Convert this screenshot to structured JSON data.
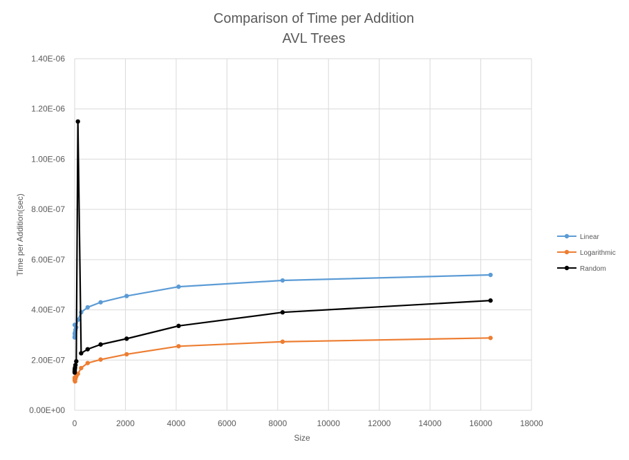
{
  "chart_data": {
    "type": "scatter",
    "title_lines": [
      "Comparison of Time per Addition",
      "AVL Trees"
    ],
    "xlabel": "Size",
    "ylabel": "Time per Addition(sec)",
    "xlim": [
      0,
      18000
    ],
    "ylim": [
      0,
      1.4e-06
    ],
    "x_ticks": [
      0,
      2000,
      4000,
      6000,
      8000,
      10000,
      12000,
      14000,
      16000,
      18000
    ],
    "x_tick_labels": [
      "0",
      "2000",
      "4000",
      "6000",
      "8000",
      "10000",
      "12000",
      "14000",
      "16000",
      "18000"
    ],
    "y_ticks": [
      0,
      2e-07,
      4e-07,
      6e-07,
      8e-07,
      1e-06,
      1.2e-06,
      1.4e-06
    ],
    "y_tick_labels": [
      "0.00E+00",
      "2.00E-07",
      "4.00E-07",
      "6.00E-07",
      "8.00E-07",
      "1.00E-06",
      "1.20E-06",
      "1.40E-06"
    ],
    "grid": true,
    "legend_position": "right",
    "series": [
      {
        "name": "Linear",
        "color": "#5b9bd5",
        "x": [
          1,
          2,
          4,
          8,
          16,
          32,
          64,
          128,
          256,
          512,
          1024,
          2048,
          4096,
          8192,
          16384
        ],
        "y": [
          2.9e-07,
          3.4e-07,
          3.05e-07,
          2.95e-07,
          3.1e-07,
          3.2e-07,
          3.3e-07,
          3.6e-07,
          3.9e-07,
          4.1e-07,
          4.3e-07,
          4.55e-07,
          4.92e-07,
          5.17e-07,
          5.39e-07
        ]
      },
      {
        "name": "Logarithmic",
        "color": "#ed7d31",
        "x": [
          1,
          2,
          4,
          8,
          16,
          32,
          64,
          128,
          256,
          512,
          1024,
          2048,
          4096,
          8192,
          16384
        ],
        "y": [
          1.2e-07,
          1.3e-07,
          1.25e-07,
          1.2e-07,
          1.15e-07,
          1.25e-07,
          1.35e-07,
          1.45e-07,
          1.68e-07,
          1.88e-07,
          2.02e-07,
          2.23e-07,
          2.55e-07,
          2.73e-07,
          2.88e-07
        ]
      },
      {
        "name": "Random",
        "color": "#000000",
        "x": [
          1,
          2,
          4,
          8,
          16,
          32,
          64,
          128,
          256,
          512,
          1024,
          2048,
          4096,
          8192,
          16384
        ],
        "y": [
          1.5e-07,
          1.55e-07,
          1.6e-07,
          1.65e-07,
          1.7e-07,
          1.8e-07,
          1.95e-07,
          1.15e-06,
          2.27e-07,
          2.43e-07,
          2.62e-07,
          2.85e-07,
          3.36e-07,
          3.9e-07,
          4.37e-07
        ]
      }
    ]
  }
}
